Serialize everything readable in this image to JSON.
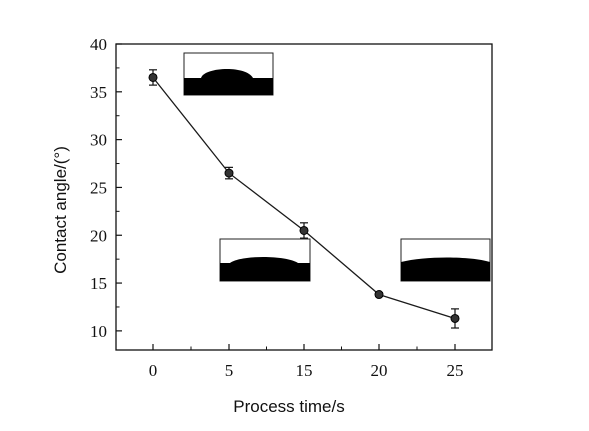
{
  "chart_data": {
    "type": "line",
    "title": "",
    "xlabel": "Process time/s",
    "ylabel": "Contact angle/(°)",
    "categories": [
      "0",
      "5",
      "15",
      "20",
      "25"
    ],
    "yticks": [
      "10",
      "15",
      "20",
      "25",
      "30",
      "35",
      "40"
    ],
    "ylim": [
      8,
      40
    ],
    "grid": false,
    "series": [
      {
        "values": [
          36.5,
          26.5,
          20.5,
          13.8,
          11.3
        ],
        "errors": [
          0.8,
          0.6,
          0.8,
          0.2,
          1.0
        ]
      }
    ],
    "insets": [
      {
        "category_index": 0,
        "description": "droplet-inset"
      },
      {
        "category_index": 2,
        "description": "droplet-inset"
      },
      {
        "category_index": 4,
        "description": "droplet-inset"
      }
    ]
  },
  "colors": {
    "line": "#1a1a1a",
    "marker": "#333333",
    "inset_fill": "#000000"
  }
}
